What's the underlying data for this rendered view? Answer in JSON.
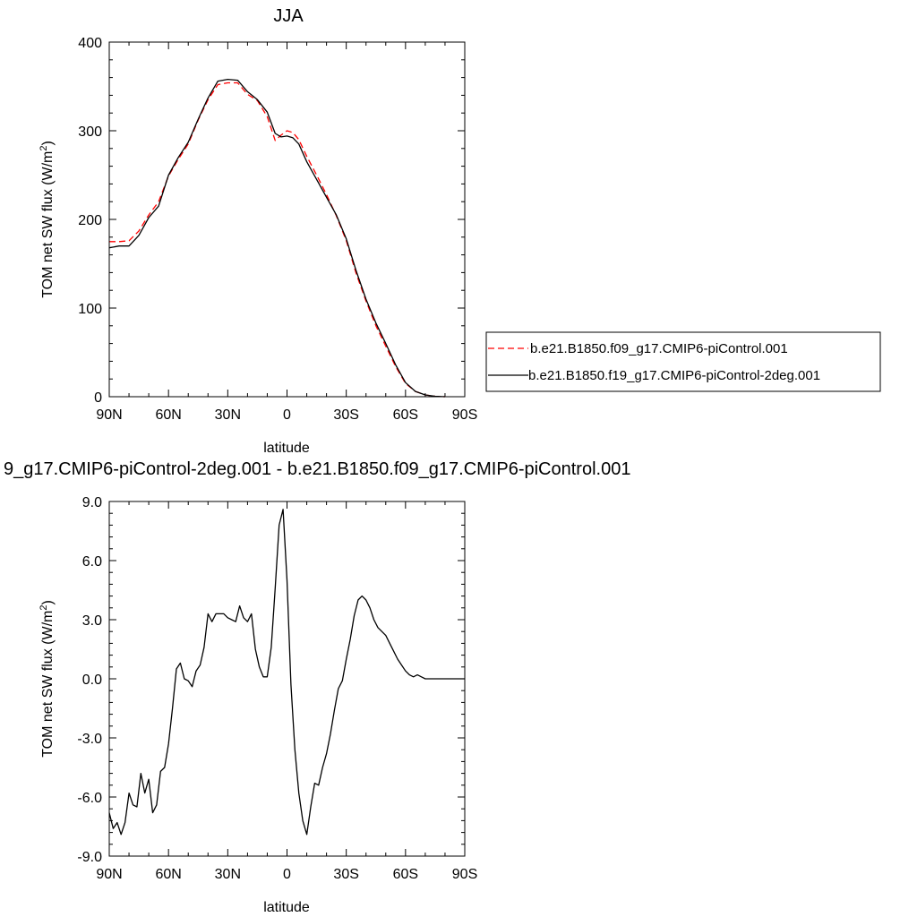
{
  "chart_data": [
    {
      "type": "line",
      "title": "JJA",
      "xlabel": "latitude",
      "ylabel": "TOM net SW flux (W/m",
      "ylabel_sup": "2",
      "ylabel_close": ")",
      "xlim": [
        90,
        -90
      ],
      "ylim": [
        0,
        400
      ],
      "yticks": [
        0,
        100,
        200,
        300,
        400
      ],
      "ytick_labels": [
        "0",
        "100",
        "200",
        "300",
        "400"
      ],
      "xticks": [
        90,
        60,
        30,
        0,
        -30,
        -60,
        -90
      ],
      "xtick_labels": [
        "90N",
        "60N",
        "30N",
        "0",
        "30S",
        "60S",
        "90S"
      ],
      "legend": "right",
      "grid": false,
      "series": [
        {
          "name": "b.e21.B1850.f09_g17.CMIP6-piControl.001",
          "color": "#ff0000",
          "dash": true,
          "x": [
            90,
            85,
            80,
            75,
            70,
            65,
            60,
            55,
            50,
            45,
            40,
            35,
            30,
            25,
            20,
            15,
            10,
            6,
            3,
            0,
            -3,
            -6,
            -10,
            -15,
            -20,
            -25,
            -30,
            -35,
            -40,
            -45,
            -50,
            -55,
            -60,
            -65,
            -70,
            -75,
            -80
          ],
          "y": [
            175,
            175,
            176,
            187,
            205,
            220,
            249,
            268,
            285,
            312,
            335,
            352,
            354,
            354,
            341,
            334,
            316,
            289,
            295,
            300,
            298,
            290,
            271,
            250,
            228,
            204,
            176,
            139,
            108,
            80,
            57,
            34,
            15,
            6,
            2,
            0.5,
            0
          ]
        },
        {
          "name": "b.e21.B1850.f19_g17.CMIP6-piControl-2deg.001",
          "color": "#000000",
          "dash": false,
          "x": [
            90,
            85,
            80,
            75,
            70,
            65,
            60,
            55,
            50,
            45,
            40,
            35,
            30,
            25,
            20,
            15,
            10,
            6,
            3,
            0,
            -3,
            -6,
            -10,
            -15,
            -20,
            -25,
            -30,
            -35,
            -40,
            -45,
            -50,
            -55,
            -60,
            -65,
            -70,
            -75,
            -80
          ],
          "y": [
            168,
            170,
            170,
            182,
            202,
            215,
            250,
            270,
            287,
            313,
            337,
            356,
            358,
            357,
            344,
            335,
            321,
            297,
            293,
            294,
            292,
            285,
            265,
            245,
            225,
            205,
            178,
            142,
            110,
            83,
            60,
            36,
            16,
            6,
            2,
            0.5,
            0
          ]
        }
      ]
    },
    {
      "type": "line",
      "title": "9_g17.CMIP6-piControl-2deg.001 - b.e21.B1850.f09_g17.CMIP6-piControl.001",
      "xlabel": "latitude",
      "ylabel": "TOM net SW flux (W/m",
      "ylabel_sup": "2",
      "ylabel_close": ")",
      "xlim": [
        90,
        -90
      ],
      "ylim": [
        -9,
        9
      ],
      "yticks": [
        -9,
        -6,
        -3,
        0,
        3,
        6,
        9
      ],
      "ytick_labels": [
        "-9.0",
        "-6.0",
        "-3.0",
        "0.0",
        "3.0",
        "6.0",
        "9.0"
      ],
      "xticks": [
        90,
        60,
        30,
        0,
        -30,
        -60,
        -90
      ],
      "xtick_labels": [
        "90N",
        "60N",
        "30N",
        "0",
        "30S",
        "60S",
        "90S"
      ],
      "grid": false,
      "series": [
        {
          "color": "#000000",
          "x": [
            90,
            88,
            86,
            84,
            82,
            80,
            78,
            76,
            74,
            72,
            70,
            68,
            66,
            64,
            62,
            60,
            58,
            56,
            54,
            52,
            50,
            48,
            46,
            44,
            42,
            40,
            38,
            36,
            34,
            32,
            30,
            28,
            26,
            24,
            22,
            20,
            18,
            16,
            14,
            12,
            10,
            8,
            6,
            4,
            2,
            0,
            -2,
            -4,
            -6,
            -8,
            -10,
            -12,
            -14,
            -16,
            -18,
            -20,
            -22,
            -24,
            -26,
            -28,
            -30,
            -32,
            -34,
            -36,
            -38,
            -40,
            -42,
            -44,
            -46,
            -48,
            -50,
            -52,
            -54,
            -56,
            -58,
            -60,
            -62,
            -64,
            -66,
            -68,
            -70,
            -75,
            -80,
            -85,
            -90
          ],
          "y": [
            -6.8,
            -7.6,
            -7.3,
            -7.9,
            -7.3,
            -5.8,
            -6.4,
            -6.5,
            -4.8,
            -5.8,
            -5.1,
            -6.8,
            -6.4,
            -4.7,
            -4.5,
            -3.3,
            -1.5,
            0.5,
            0.8,
            0.0,
            -0.1,
            -0.4,
            0.4,
            0.7,
            1.6,
            3.3,
            2.9,
            3.3,
            3.3,
            3.3,
            3.1,
            3.0,
            2.9,
            3.7,
            3.1,
            2.9,
            3.3,
            1.5,
            0.6,
            0.1,
            0.1,
            1.6,
            4.6,
            7.8,
            8.6,
            5.0,
            -0.3,
            -3.6,
            -5.8,
            -7.2,
            -7.9,
            -6.5,
            -5.3,
            -5.4,
            -4.5,
            -3.8,
            -2.8,
            -1.6,
            -0.5,
            -0.1,
            1.0,
            2.0,
            3.2,
            4.0,
            4.2,
            4.0,
            3.6,
            3.0,
            2.6,
            2.4,
            2.2,
            1.8,
            1.4,
            1.0,
            0.7,
            0.4,
            0.2,
            0.1,
            0.2,
            0.1,
            0.0,
            0.0,
            0.0,
            0.0,
            0.0
          ]
        }
      ]
    }
  ]
}
